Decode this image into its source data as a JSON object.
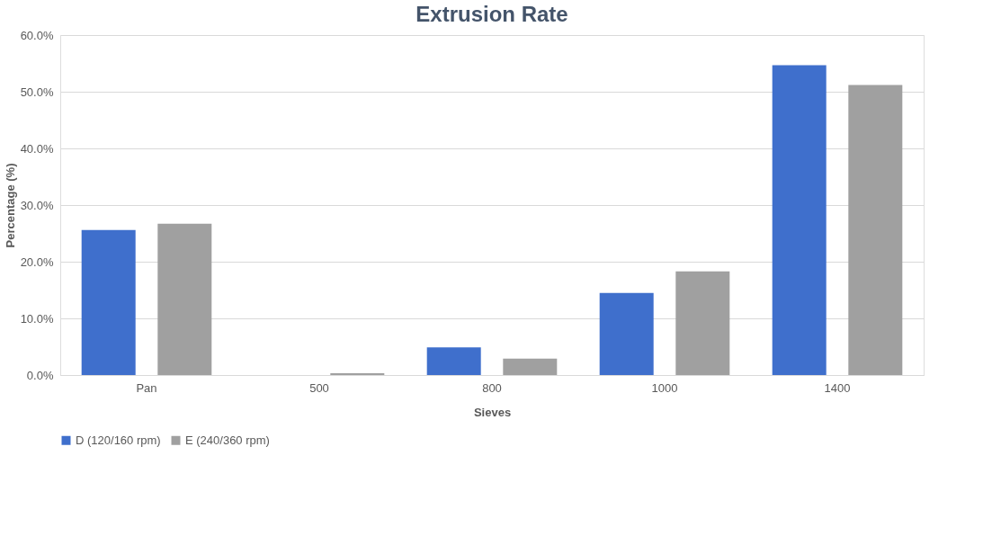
{
  "chart_data": {
    "type": "bar",
    "title": "Extrusion Rate",
    "xlabel": "Sieves",
    "ylabel": "Percentage (%)",
    "categories": [
      "Pan",
      "500",
      "800",
      "1000",
      "1400"
    ],
    "series": [
      {
        "name": "D (120/160 rpm)",
        "color": "#3f6fcc",
        "values": [
          25.6,
          0,
          4.9,
          14.5,
          54.7
        ]
      },
      {
        "name": "E (240/360 rpm)",
        "color": "#a0a0a0",
        "values": [
          26.7,
          0.3,
          2.9,
          18.3,
          51.2
        ]
      }
    ],
    "ylim": [
      0,
      60
    ],
    "yticks": [
      {
        "value": 0,
        "label": "0.0%"
      },
      {
        "value": 10,
        "label": "10.0%"
      },
      {
        "value": 20,
        "label": "20.0%"
      },
      {
        "value": 30,
        "label": "30.0%"
      },
      {
        "value": 40,
        "label": "40.0%"
      },
      {
        "value": 50,
        "label": "50.0%"
      },
      {
        "value": 60,
        "label": "60.0%"
      }
    ],
    "grid": "y",
    "legend": "bottom"
  }
}
